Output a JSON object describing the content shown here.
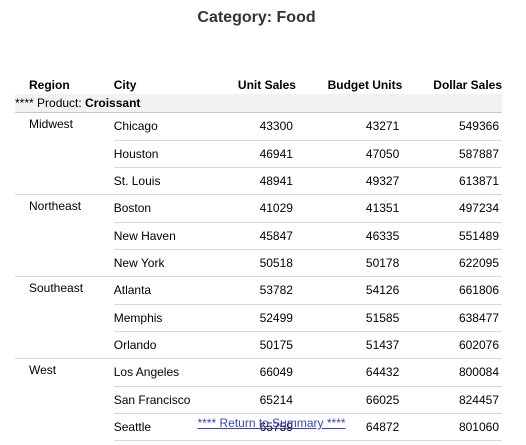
{
  "header": {
    "title": "Category: Food"
  },
  "table": {
    "columns": {
      "region": "Region",
      "city": "City",
      "unit_sales": "Unit Sales",
      "budget_units": "Budget Units",
      "dollar_sales": "Dollar Sales"
    },
    "group_prefix": "**** Product: ",
    "group_name": "Croissant",
    "regions": [
      {
        "name": "Midwest",
        "rows": [
          {
            "city": "Chicago",
            "unit_sales": "43300",
            "budget_units": "43271",
            "dollar_sales": "549366"
          },
          {
            "city": "Houston",
            "unit_sales": "46941",
            "budget_units": "47050",
            "dollar_sales": "587887"
          },
          {
            "city": "St. Louis",
            "unit_sales": "48941",
            "budget_units": "49327",
            "dollar_sales": "613871"
          }
        ]
      },
      {
        "name": "Northeast",
        "rows": [
          {
            "city": "Boston",
            "unit_sales": "41029",
            "budget_units": "41351",
            "dollar_sales": "497234"
          },
          {
            "city": "New Haven",
            "unit_sales": "45847",
            "budget_units": "46335",
            "dollar_sales": "551489"
          },
          {
            "city": "New York",
            "unit_sales": "50518",
            "budget_units": "50178",
            "dollar_sales": "622095"
          }
        ]
      },
      {
        "name": "Southeast",
        "rows": [
          {
            "city": "Atlanta",
            "unit_sales": "53782",
            "budget_units": "54126",
            "dollar_sales": "661806"
          },
          {
            "city": "Memphis",
            "unit_sales": "52499",
            "budget_units": "51585",
            "dollar_sales": "638477"
          },
          {
            "city": "Orlando",
            "unit_sales": "50175",
            "budget_units": "51437",
            "dollar_sales": "602076"
          }
        ]
      },
      {
        "name": "West",
        "rows": [
          {
            "city": "Los Angeles",
            "unit_sales": "66049",
            "budget_units": "64432",
            "dollar_sales": "800084"
          },
          {
            "city": "San Francisco",
            "unit_sales": "65214",
            "budget_units": "66025",
            "dollar_sales": "824457"
          },
          {
            "city": "Seattle",
            "unit_sales": "65759",
            "budget_units": "64872",
            "dollar_sales": "801060"
          }
        ]
      }
    ]
  },
  "footer": {
    "return_link": "**** Return to Summary ****"
  },
  "colors": {
    "title": "#333333",
    "link": "#3344cc",
    "group_bg": "#f2f2f2",
    "rule": "#d8d8d8"
  }
}
